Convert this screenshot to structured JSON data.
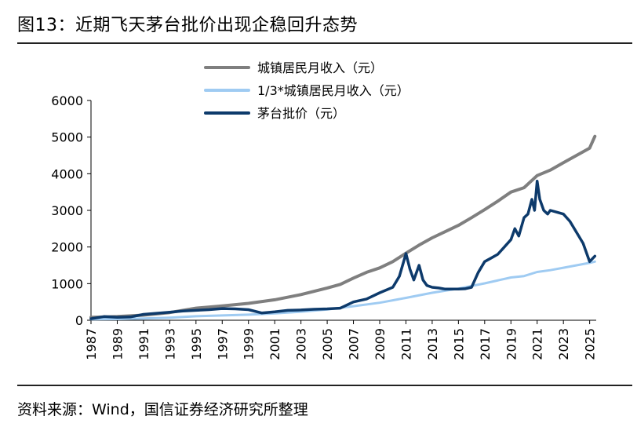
{
  "title": "图13：近期飞天茅台批价出现企稳回升态势",
  "source": "资料来源：Wind，国信证券经济研究所整理",
  "chart_data": {
    "type": "line",
    "title": "",
    "xlabel": "",
    "ylabel": "",
    "xlim": [
      1987,
      2025.5
    ],
    "ylim": [
      0,
      6000
    ],
    "yticks": [
      0,
      1000,
      2000,
      3000,
      4000,
      5000,
      6000
    ],
    "xticks": [
      "1987",
      "1989",
      "1991",
      "1993",
      "1995",
      "1997",
      "1999",
      "2001",
      "2003",
      "2005",
      "2007",
      "2009",
      "2011",
      "2013",
      "2015",
      "2017",
      "2019",
      "2021",
      "2023",
      "2025"
    ],
    "grid": false,
    "legend_position": "top-center",
    "series": [
      {
        "name": "城镇居民月收入（元）",
        "color": "#7f7f7f",
        "x": [
          1987,
          1989,
          1991,
          1993,
          1995,
          1997,
          1999,
          2001,
          2003,
          2005,
          2006,
          2007,
          2008,
          2009,
          2010,
          2011,
          2012,
          2013,
          2014,
          2015,
          2016,
          2017,
          2018,
          2019,
          2020,
          2021,
          2022,
          2023,
          2024,
          2025,
          2025.4
        ],
        "y": [
          80,
          100,
          140,
          210,
          330,
          390,
          460,
          560,
          700,
          880,
          980,
          1150,
          1310,
          1430,
          1600,
          1830,
          2050,
          2250,
          2420,
          2590,
          2800,
          3020,
          3250,
          3500,
          3620,
          3950,
          4100,
          4300,
          4500,
          4700,
          5020
        ]
      },
      {
        "name": "1/3*城镇居民月收入（元）",
        "color": "#9fcbf2",
        "x": [
          1987,
          1989,
          1991,
          1993,
          1995,
          1997,
          1999,
          2001,
          2003,
          2005,
          2007,
          2009,
          2011,
          2013,
          2015,
          2017,
          2019,
          2020,
          2021,
          2022,
          2023,
          2024,
          2025,
          2025.4
        ],
        "y": [
          27,
          33,
          47,
          70,
          110,
          130,
          153,
          187,
          233,
          293,
          383,
          477,
          610,
          750,
          863,
          1007,
          1167,
          1207,
          1317,
          1367,
          1433,
          1500,
          1567,
          1600
        ]
      },
      {
        "name": "茅台批价（元）",
        "color": "#0d3a6b",
        "x": [
          1987,
          1988,
          1989,
          1990,
          1991,
          1992,
          1993,
          1994,
          1995,
          1996,
          1997,
          1998,
          1999,
          2000,
          2001,
          2002,
          2003,
          2004,
          2005,
          2006,
          2007,
          2008,
          2009,
          2010,
          2010.5,
          2011,
          2011.3,
          2011.6,
          2012,
          2012.3,
          2012.6,
          2013,
          2013.5,
          2014,
          2015,
          2015.5,
          2016,
          2016.5,
          2017,
          2017.5,
          2018,
          2018.5,
          2019,
          2019.3,
          2019.6,
          2020,
          2020.3,
          2020.6,
          2020.8,
          2021,
          2021.2,
          2021.5,
          2021.8,
          2022,
          2022.5,
          2023,
          2023.5,
          2024,
          2024.5,
          2025,
          2025.4
        ],
        "y": [
          40,
          100,
          80,
          90,
          160,
          190,
          220,
          250,
          270,
          290,
          320,
          310,
          290,
          200,
          230,
          270,
          280,
          300,
          310,
          330,
          500,
          580,
          750,
          900,
          1200,
          1820,
          1400,
          1100,
          1500,
          1100,
          950,
          900,
          880,
          850,
          850,
          860,
          900,
          1300,
          1600,
          1700,
          1800,
          2000,
          2200,
          2500,
          2300,
          2800,
          2900,
          3300,
          3000,
          3800,
          3300,
          3000,
          2900,
          3000,
          2950,
          2900,
          2700,
          2400,
          2100,
          1600,
          1750
        ]
      }
    ]
  }
}
